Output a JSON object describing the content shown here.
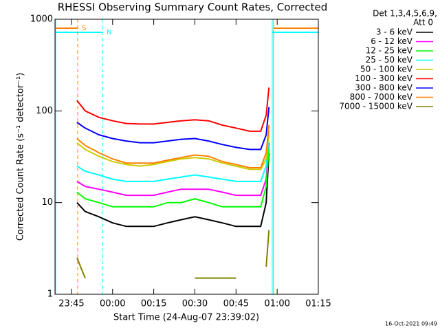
{
  "chart_data": {
    "type": "line",
    "title": "RHESSI Observing Summary Count Rates, Corrected",
    "x_label": "Start Time (24-Aug-07 23:39:02)",
    "y_label": "Corrected Count Rate (s⁻¹ detector⁻¹)",
    "legend_title": [
      "Det 1,3,4,5,6,9,",
      "Att 0"
    ],
    "footer": "16-Oct-2021 09:49",
    "annotations": [
      {
        "text": "S",
        "color": "#ff8000"
      },
      {
        "text": "N",
        "color": "#00ffff"
      }
    ],
    "log_y": true,
    "xlim": [
      1419,
      1515
    ],
    "ylim": [
      1,
      1000
    ],
    "xticks": [
      {
        "value": 1425,
        "label": "23:45"
      },
      {
        "value": 1440,
        "label": "00:00"
      },
      {
        "value": 1455,
        "label": "00:15"
      },
      {
        "value": 1470,
        "label": "00:30"
      },
      {
        "value": 1485,
        "label": "00:45"
      },
      {
        "value": 1500,
        "label": "01:00"
      },
      {
        "value": 1515,
        "label": "01:15"
      }
    ],
    "yticks": [
      1,
      10,
      100,
      1000
    ],
    "x": [
      1427,
      1430,
      1435,
      1440,
      1445,
      1450,
      1455,
      1460,
      1465,
      1470,
      1475,
      1480,
      1485,
      1490,
      1494,
      1496,
      1497
    ],
    "series": [
      {
        "name": "3 - 6 keV",
        "color": "#000000",
        "values": [
          10,
          8,
          7,
          6,
          5.5,
          5.5,
          5.5,
          6,
          6.5,
          7,
          6.5,
          6,
          5.5,
          5.5,
          5.5,
          10,
          35
        ]
      },
      {
        "name": "6 - 12 keV",
        "color": "#ff00ff",
        "values": [
          17,
          15,
          14,
          13,
          12,
          12,
          12,
          13,
          14,
          14,
          14,
          13,
          12,
          12,
          12,
          18,
          45
        ]
      },
      {
        "name": "12 - 25 keV",
        "color": "#00ff00",
        "values": [
          13,
          11,
          10,
          9,
          9,
          9,
          9,
          10,
          10,
          11,
          10,
          9,
          9,
          9,
          9,
          15,
          40
        ]
      },
      {
        "name": "25 - 50 keV",
        "color": "#00ffff",
        "values": [
          25,
          22,
          20,
          18,
          17,
          17,
          17,
          18,
          19,
          20,
          19,
          18,
          17,
          17,
          17,
          25,
          55
        ]
      },
      {
        "name": "50 - 100 keV",
        "color": "#cccc00",
        "values": [
          45,
          38,
          32,
          28,
          26,
          25,
          26,
          28,
          30,
          31,
          30,
          27,
          25,
          23,
          23,
          30,
          60
        ]
      },
      {
        "name": "100 - 300 keV",
        "color": "#ff0000",
        "values": [
          130,
          100,
          85,
          78,
          73,
          72,
          72,
          75,
          78,
          80,
          78,
          70,
          65,
          60,
          60,
          90,
          180
        ]
      },
      {
        "name": "300 - 800 keV",
        "color": "#0000ff",
        "values": [
          75,
          65,
          55,
          50,
          47,
          45,
          45,
          47,
          49,
          50,
          47,
          43,
          40,
          38,
          38,
          55,
          110
        ]
      },
      {
        "name": "800 - 7000 keV",
        "color": "#ff8000",
        "values": [
          50,
          42,
          35,
          30,
          27,
          27,
          27,
          29,
          31,
          33,
          32,
          28,
          26,
          24,
          24,
          35,
          70
        ]
      },
      {
        "name": "7000 - 15000 keV",
        "color": "#808000",
        "values": [
          2.5,
          1.5,
          null,
          null,
          null,
          null,
          null,
          null,
          null,
          1.5,
          1.5,
          1.5,
          1.5,
          null,
          null,
          2,
          5
        ]
      }
    ]
  }
}
